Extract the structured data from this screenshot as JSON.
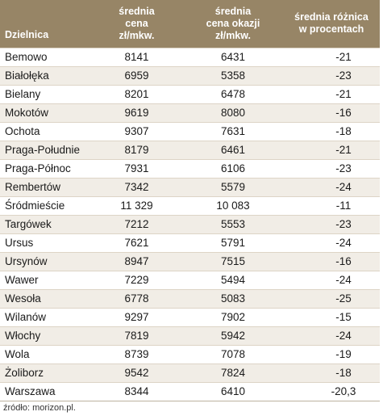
{
  "table": {
    "headers": {
      "district": "Dzielnica",
      "avg_price": [
        "średnia",
        "cena",
        "zł/mkw."
      ],
      "avg_bargain": [
        "średnia",
        "cena okazji",
        "zł/mkw."
      ],
      "avg_diff": [
        "średnia różnica",
        "w procentach"
      ]
    },
    "rows": [
      {
        "district": "Bemowo",
        "price": "8141",
        "bargain": "6431",
        "diff": "-21"
      },
      {
        "district": "Białołęka",
        "price": "6959",
        "bargain": "5358",
        "diff": "-23"
      },
      {
        "district": "Bielany",
        "price": "8201",
        "bargain": "6478",
        "diff": "-21"
      },
      {
        "district": "Mokotów",
        "price": "9619",
        "bargain": "8080",
        "diff": "-16"
      },
      {
        "district": "Ochota",
        "price": "9307",
        "bargain": "7631",
        "diff": "-18"
      },
      {
        "district": "Praga-Południe",
        "price": "8179",
        "bargain": "6461",
        "diff": "-21"
      },
      {
        "district": "Praga-Północ",
        "price": "7931",
        "bargain": "6106",
        "diff": "-23"
      },
      {
        "district": "Rembertów",
        "price": "7342",
        "bargain": "5579",
        "diff": "-24"
      },
      {
        "district": "Śródmieście",
        "price": "11 329",
        "bargain": "10 083",
        "diff": "-11"
      },
      {
        "district": "Targówek",
        "price": "7212",
        "bargain": "5553",
        "diff": "-23"
      },
      {
        "district": "Ursus",
        "price": "7621",
        "bargain": "5791",
        "diff": "-24"
      },
      {
        "district": "Ursynów",
        "price": "8947",
        "bargain": "7515",
        "diff": "-16"
      },
      {
        "district": "Wawer",
        "price": "7229",
        "bargain": "5494",
        "diff": "-24"
      },
      {
        "district": "Wesoła",
        "price": "6778",
        "bargain": "5083",
        "diff": "-25"
      },
      {
        "district": "Wilanów",
        "price": "9297",
        "bargain": "7902",
        "diff": "-15"
      },
      {
        "district": "Włochy",
        "price": "7819",
        "bargain": "5942",
        "diff": "-24"
      },
      {
        "district": "Wola",
        "price": "8739",
        "bargain": "7078",
        "diff": "-19"
      },
      {
        "district": "Żoliborz",
        "price": "9542",
        "bargain": "7824",
        "diff": "-18"
      },
      {
        "district": "Warszawa",
        "price": "8344",
        "bargain": "6410",
        "diff": "-20,3"
      }
    ]
  },
  "source": "źródło: morizon.pl.",
  "colors": {
    "header_bg": "#978566",
    "header_text": "#ffffff",
    "row_alt_bg": "#f1ede6"
  }
}
